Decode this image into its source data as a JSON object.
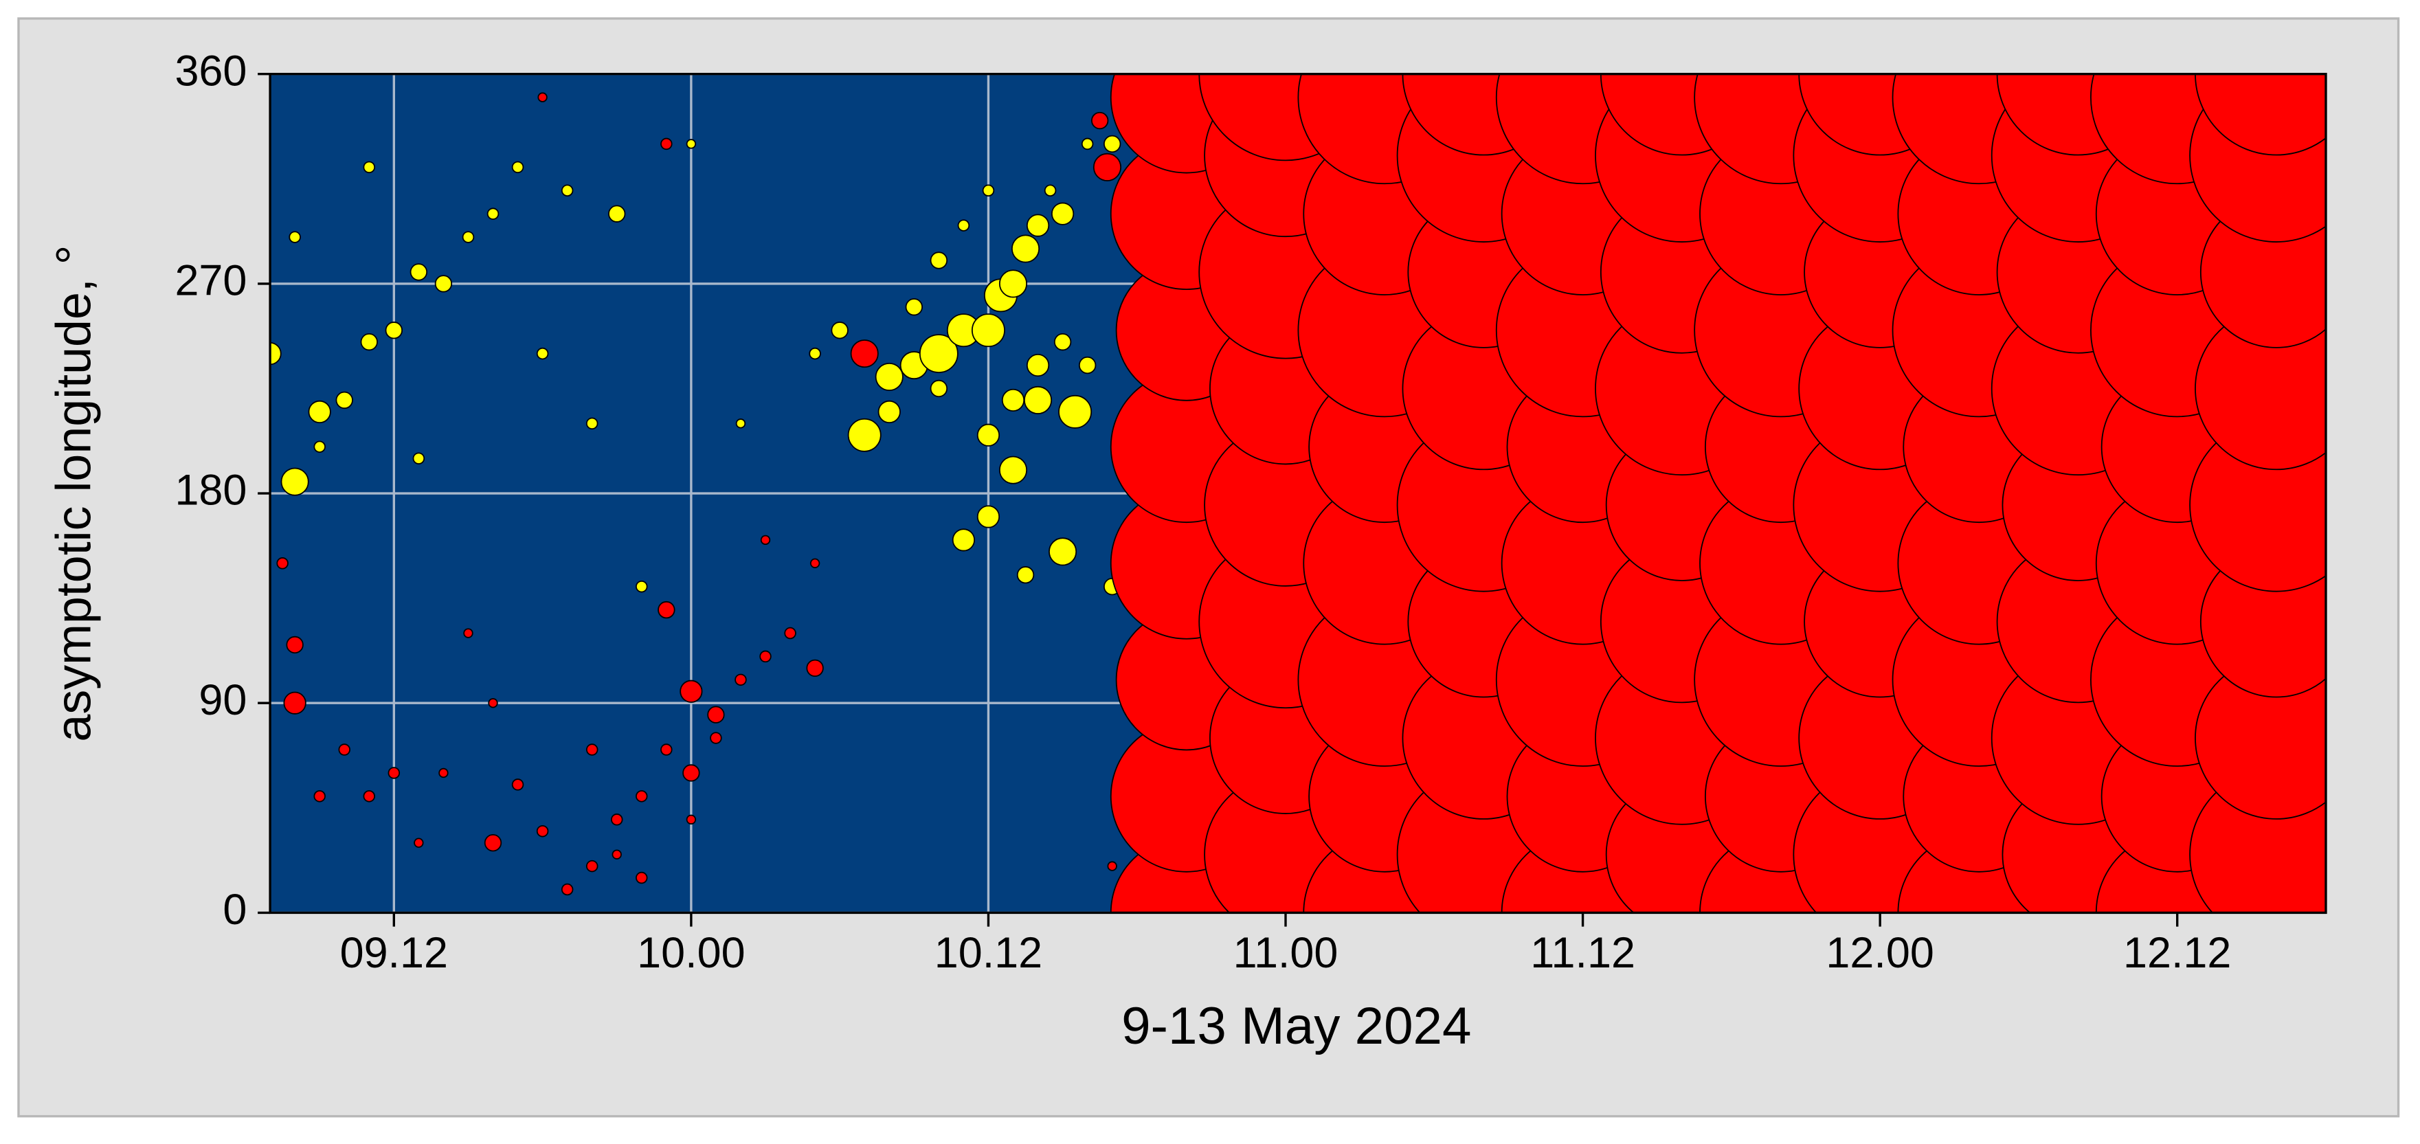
{
  "chart_data": {
    "type": "bubble",
    "xlabel": "9-13 May 2024",
    "ylabel": "asymptotic longitude, °",
    "xlim": [
      7,
      90
    ],
    "xticks": [
      {
        "value": 12,
        "label": "09.12"
      },
      {
        "value": 24,
        "label": "10.00"
      },
      {
        "value": 36,
        "label": "10.12"
      },
      {
        "value": 48,
        "label": "11.00"
      },
      {
        "value": 60,
        "label": "11.12"
      },
      {
        "value": 72,
        "label": "12.00"
      },
      {
        "value": 84,
        "label": "12.12"
      }
    ],
    "ylim": [
      0,
      360
    ],
    "yticks": [
      0,
      90,
      180,
      270,
      360
    ],
    "grid": true,
    "background": "#023e7d",
    "series": [
      {
        "color": "#ffff00",
        "x": [
          31,
          32,
          33,
          34,
          35,
          36,
          36.5,
          37,
          37.5,
          38,
          39,
          32,
          34,
          36,
          37,
          38,
          38,
          39,
          39.5,
          40,
          37,
          36,
          35,
          39,
          37.5,
          41,
          33,
          34,
          35,
          36,
          41,
          30,
          29,
          38.5,
          40,
          7,
          8,
          9,
          10,
          11,
          12,
          13,
          14,
          8,
          11,
          15,
          16,
          17,
          18,
          19,
          21,
          20,
          22,
          9,
          13,
          24,
          26
        ],
        "values": [
          205,
          230,
          235,
          240,
          250,
          250,
          265,
          270,
          285,
          295,
          300,
          215,
          225,
          205,
          220,
          220,
          235,
          245,
          215,
          235,
          190,
          170,
          160,
          155,
          145,
          140,
          260,
          280,
          295,
          310,
          330,
          250,
          240,
          310,
          330,
          240,
          185,
          215,
          220,
          245,
          250,
          275,
          270,
          290,
          320,
          290,
          300,
          320,
          240,
          310,
          300,
          210,
          140,
          200,
          195,
          330,
          210
        ],
        "sizes": [
          3,
          2.5,
          2.5,
          3.5,
          3,
          3,
          3,
          2.5,
          2.5,
          2,
          2,
          2,
          1.5,
          2,
          2,
          2.5,
          2,
          1.5,
          3,
          1.5,
          2.5,
          2,
          2,
          2.5,
          1.5,
          1.5,
          1.5,
          1.5,
          1,
          1,
          1.5,
          1.5,
          1,
          1,
          1,
          2,
          2.5,
          2,
          1.5,
          1.5,
          1.5,
          1.5,
          1.5,
          1,
          1,
          1,
          1,
          1,
          1,
          1,
          1.5,
          1,
          1,
          1,
          1,
          0.8,
          0.8
        ]
      },
      {
        "color": "#ff0000",
        "x": [
          8,
          8,
          7.5,
          9,
          10,
          11,
          12,
          16,
          17,
          18,
          20,
          21,
          22,
          22,
          23,
          24,
          24,
          25,
          26,
          27,
          28,
          29,
          31,
          23,
          25,
          27,
          29,
          18,
          23,
          20,
          19,
          16,
          14,
          13,
          21,
          24,
          15,
          40.5,
          40.8,
          41,
          41.5
        ],
        "values": [
          90,
          115,
          150,
          50,
          70,
          50,
          60,
          30,
          55,
          35,
          20,
          40,
          50,
          15,
          70,
          95,
          60,
          85,
          100,
          110,
          120,
          105,
          240,
          130,
          75,
          160,
          150,
          350,
          330,
          70,
          10,
          90,
          60,
          30,
          25,
          40,
          120,
          340,
          320,
          20,
          200
        ],
        "sizes": [
          2,
          1.5,
          1,
          1,
          1,
          1,
          1,
          1.5,
          1,
          1,
          1,
          1,
          1,
          1,
          1,
          2,
          1.5,
          1.5,
          1,
          1,
          1,
          1.5,
          2.5,
          1.5,
          1,
          0.8,
          0.8,
          0.8,
          1,
          1,
          1,
          0.8,
          0.8,
          0.8,
          0.8,
          0.8,
          0.8,
          1.5,
          2.5,
          0.8,
          1
        ]
      },
      {
        "color": "#ff0000",
        "x": [
          44,
          44,
          44,
          44,
          44,
          44,
          44,
          44,
          48,
          48,
          48,
          48,
          48,
          48,
          48,
          48,
          52,
          52,
          52,
          52,
          52,
          52,
          52,
          52,
          56,
          56,
          56,
          56,
          56,
          56,
          56,
          56,
          60,
          60,
          60,
          60,
          60,
          60,
          60,
          60,
          64,
          64,
          64,
          64,
          64,
          64,
          64,
          64,
          68,
          68,
          68,
          68,
          68,
          68,
          68,
          68,
          72,
          72,
          72,
          72,
          72,
          72,
          72,
          72,
          76,
          76,
          76,
          76,
          76,
          76,
          76,
          76,
          80,
          80,
          80,
          80,
          80,
          80,
          80,
          80,
          84,
          84,
          84,
          84,
          84,
          84,
          84,
          84,
          88,
          88,
          88,
          88,
          88,
          88,
          88,
          88
        ],
        "values": [
          0,
          50,
          100,
          150,
          200,
          250,
          300,
          350,
          25,
          75,
          125,
          175,
          225,
          275,
          325,
          360,
          0,
          50,
          100,
          150,
          200,
          250,
          300,
          350,
          25,
          75,
          125,
          175,
          225,
          275,
          325,
          360,
          0,
          50,
          100,
          150,
          200,
          250,
          300,
          350,
          25,
          75,
          125,
          175,
          225,
          275,
          325,
          360,
          0,
          50,
          100,
          150,
          200,
          250,
          300,
          350,
          25,
          75,
          125,
          175,
          225,
          275,
          325,
          360,
          0,
          50,
          100,
          150,
          200,
          250,
          300,
          350,
          25,
          75,
          125,
          175,
          225,
          275,
          325,
          360,
          0,
          50,
          100,
          150,
          200,
          250,
          300,
          350,
          25,
          75,
          125,
          175,
          225,
          275,
          325,
          360
        ],
        "sizes": [
          14,
          14,
          13,
          14,
          14,
          13,
          14,
          14,
          15,
          14,
          16,
          15,
          14,
          16,
          15,
          16,
          15,
          14,
          16,
          15,
          14,
          16,
          15,
          16,
          16,
          15,
          14,
          16,
          15,
          14,
          16,
          15,
          15,
          14,
          16,
          15,
          14,
          16,
          15,
          16,
          14,
          16,
          15,
          14,
          16,
          15,
          16,
          15,
          15,
          14,
          16,
          15,
          14,
          16,
          15,
          16,
          16,
          15,
          14,
          16,
          15,
          14,
          16,
          15,
          15,
          14,
          16,
          15,
          14,
          16,
          15,
          16,
          14,
          16,
          15,
          14,
          16,
          15,
          16,
          15,
          15,
          14,
          16,
          15,
          14,
          16,
          15,
          16,
          16,
          15,
          14,
          16,
          15,
          14,
          16,
          15
        ]
      }
    ]
  }
}
